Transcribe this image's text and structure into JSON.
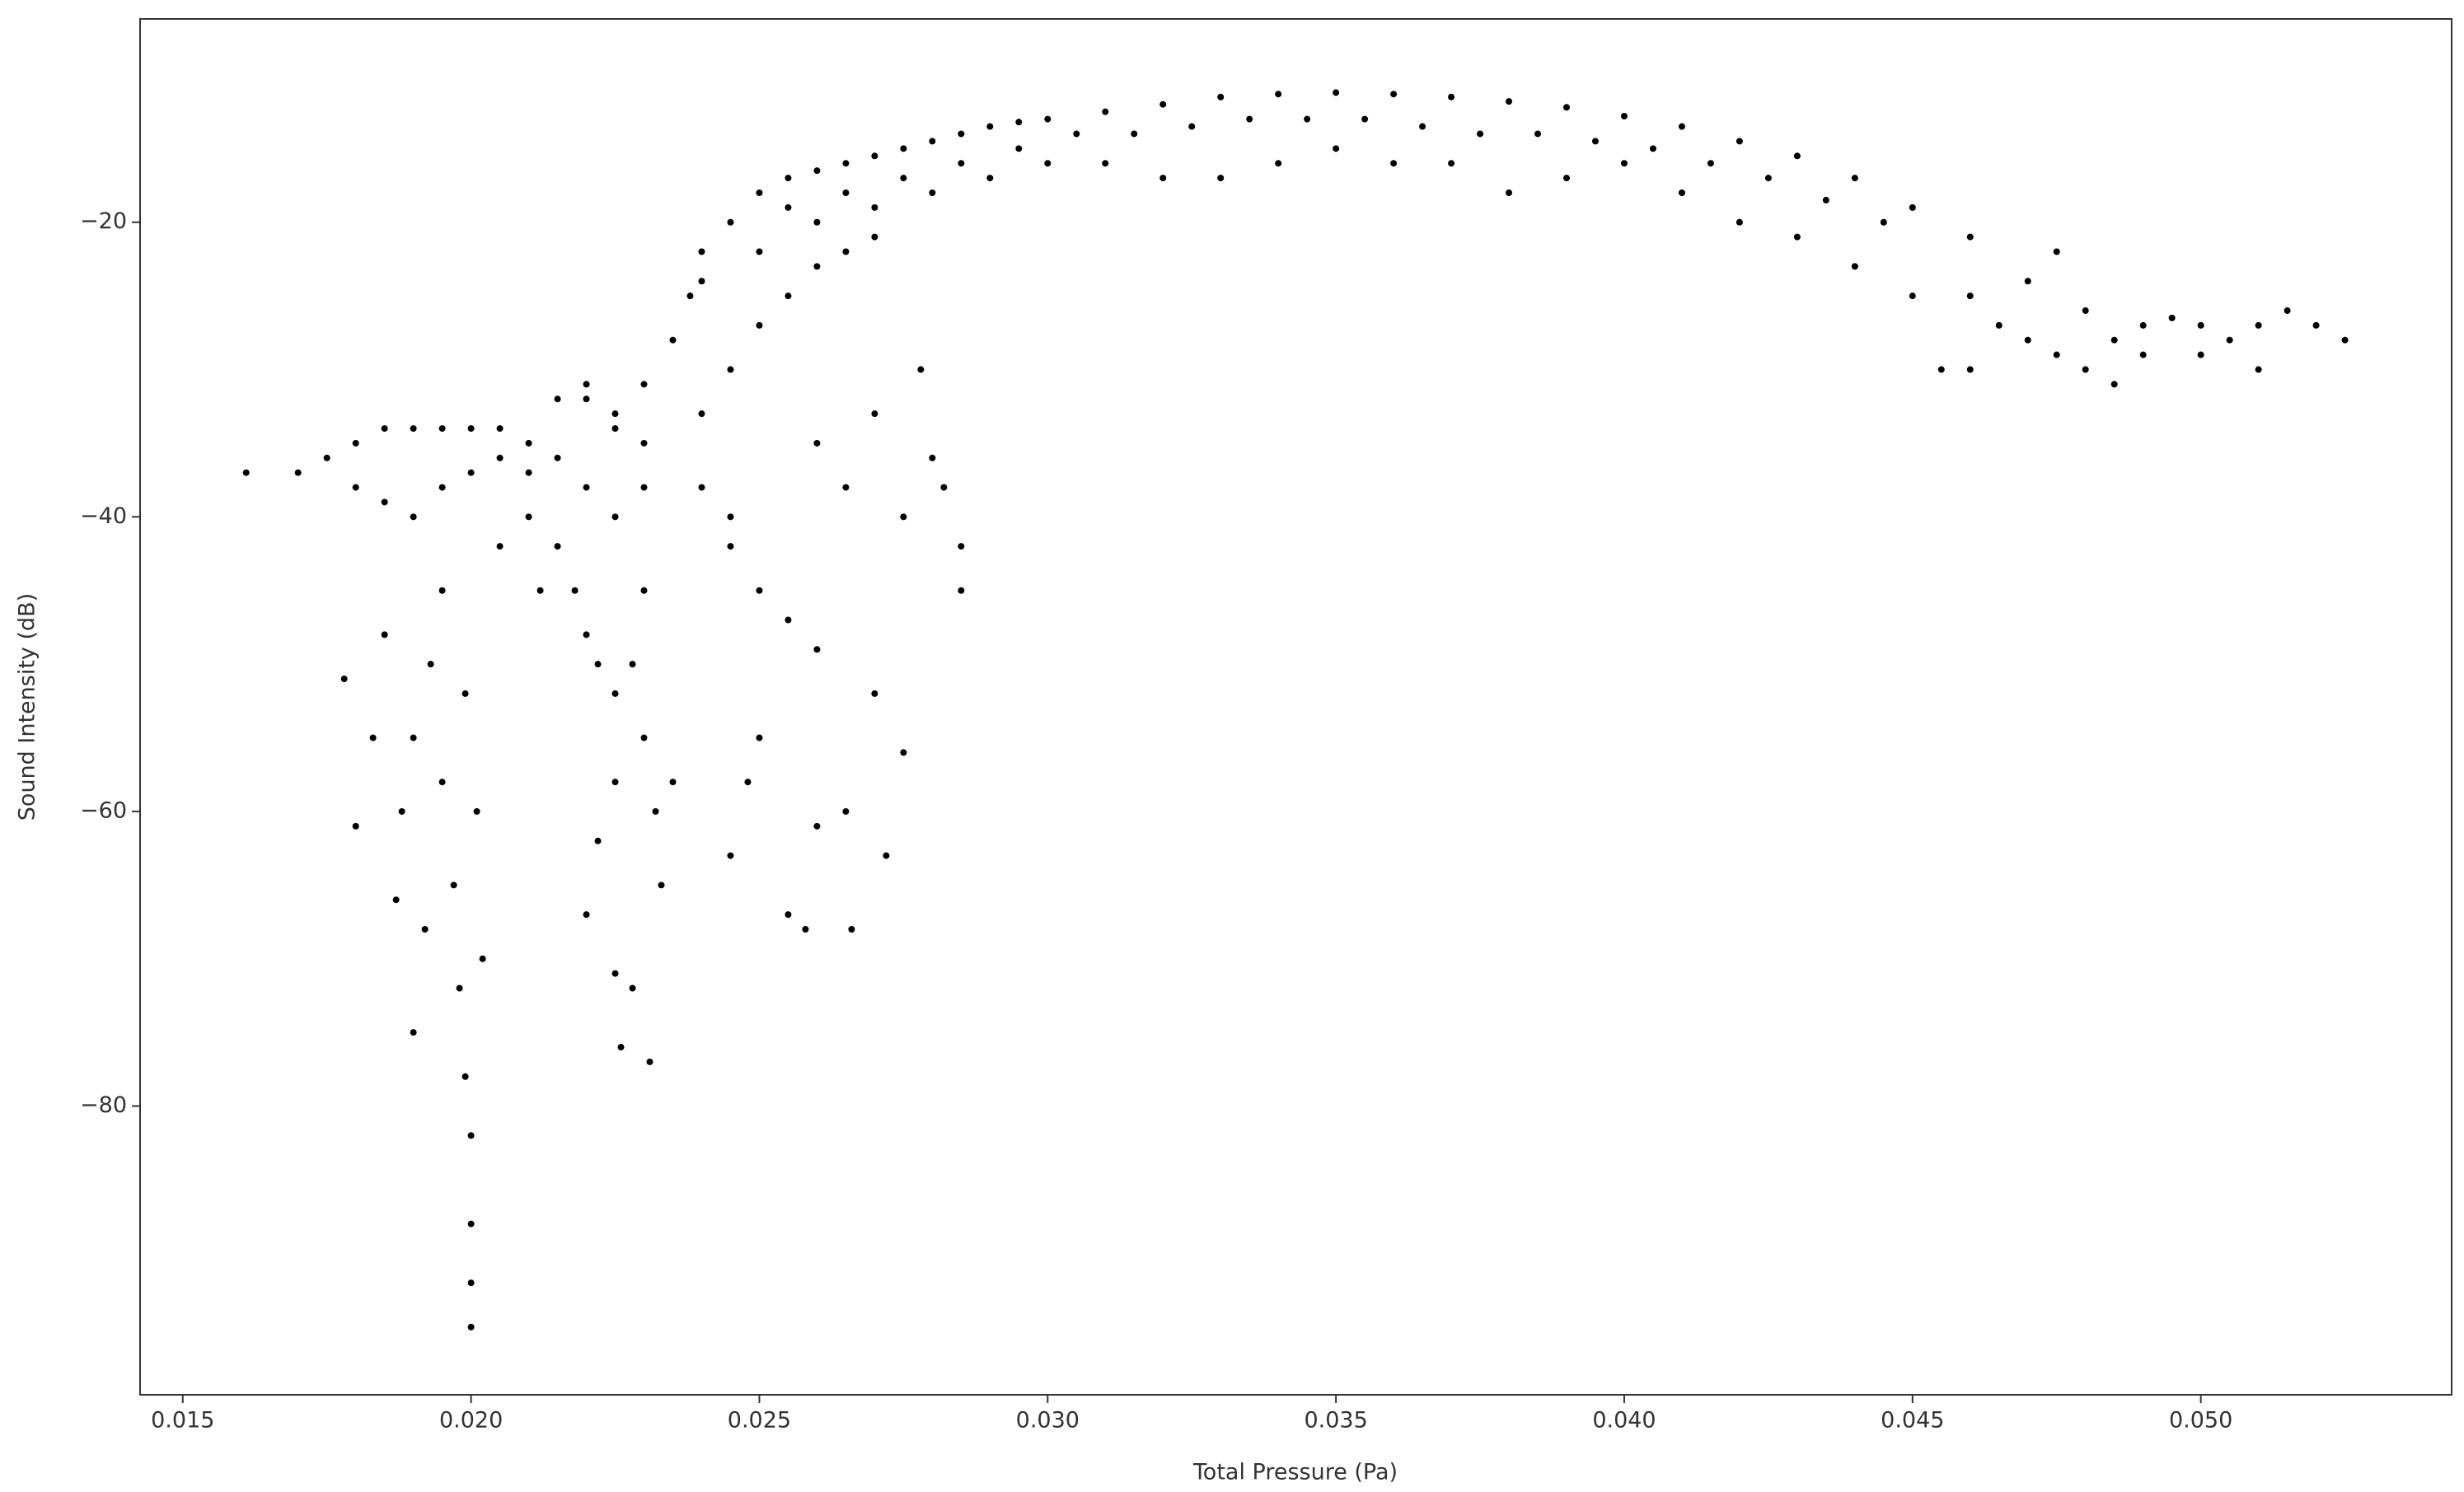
{
  "chart_data": {
    "type": "scatter",
    "x_label": "Total Pressure (Pa)",
    "y_label": "Sound Intensity (dB)",
    "color": "#000000",
    "xlim": [
      0.01426,
      0.05435
    ],
    "ylim": [
      -99.6,
      -6.2
    ],
    "xticks": [
      0.015,
      {
        "value": 0.02,
        "label": "0.020"
      },
      0.025,
      {
        "value": 0.03,
        "label": "0.030"
      },
      0.035,
      {
        "value": 0.04,
        "label": "0.040"
      },
      0.045,
      {
        "value": 0.05,
        "label": "0.050"
      }
    ],
    "yticks": [
      {
        "value": -20,
        "label": "−20"
      },
      {
        "value": -40,
        "label": "−40"
      },
      {
        "value": -60,
        "label": "−60"
      },
      {
        "value": -80,
        "label": "−80"
      }
    ],
    "x": [
      0.024,
      0.0245,
      0.025,
      0.0255,
      0.026,
      0.0265,
      0.027,
      0.0275,
      0.028,
      0.0285,
      0.029,
      0.0295,
      0.03,
      0.031,
      0.032,
      0.033,
      0.034,
      0.035,
      0.036,
      0.037,
      0.038,
      0.039,
      0.04,
      0.041,
      0.042,
      0.043,
      0.044,
      0.045,
      0.046,
      0.025,
      0.026,
      0.027,
      0.028,
      0.029,
      0.03,
      0.031,
      0.032,
      0.033,
      0.034,
      0.035,
      0.036,
      0.037,
      0.038,
      0.039,
      0.04,
      0.041,
      0.042,
      0.043,
      0.044,
      0.045,
      0.0455,
      0.0255,
      0.0265,
      0.0275,
      0.0285,
      0.0295,
      0.0305,
      0.0315,
      0.0325,
      0.0335,
      0.0345,
      0.0355,
      0.0365,
      0.0375,
      0.0385,
      0.0395,
      0.0405,
      0.0415,
      0.0425,
      0.0435,
      0.0445,
      0.046,
      0.0465,
      0.047,
      0.0475,
      0.048,
      0.0485,
      0.049,
      0.0495,
      0.05,
      0.0505,
      0.051,
      0.0515,
      0.052,
      0.0525,
      0.047,
      0.048,
      0.049,
      0.05,
      0.051,
      0.046,
      0.0475,
      0.0485,
      0.0225,
      0.023,
      0.0235,
      0.0238,
      0.024,
      0.022,
      0.023,
      0.024,
      0.0245,
      0.025,
      0.0255,
      0.026,
      0.0265,
      0.027,
      0.024,
      0.0245,
      0.0245,
      0.025,
      0.0255,
      0.026,
      0.026,
      0.0265,
      0.027,
      0.0275,
      0.028,
      0.0285,
      0.0285,
      0.0275,
      0.027,
      0.0265,
      0.026,
      0.0255,
      0.0258,
      0.0266,
      0.0272,
      0.025,
      0.0245,
      0.0248,
      0.0278,
      0.0282,
      0.0161,
      0.017,
      0.0175,
      0.018,
      0.0185,
      0.019,
      0.0195,
      0.02,
      0.0205,
      0.021,
      0.0215,
      0.018,
      0.0185,
      0.019,
      0.0195,
      0.02,
      0.0205,
      0.021,
      0.0215,
      0.022,
      0.0225,
      0.023,
      0.022,
      0.0225,
      0.023,
      0.0195,
      0.0193,
      0.019,
      0.0188,
      0.0195,
      0.0197,
      0.0198,
      0.0199,
      0.02,
      0.02,
      0.02,
      0.02,
      0.0192,
      0.019,
      0.0185,
      0.0183,
      0.018,
      0.0178,
      0.0187,
      0.0202,
      0.0201,
      0.0199,
      0.0215,
      0.0218,
      0.022,
      0.0222,
      0.0225,
      0.023,
      0.0228,
      0.0225,
      0.0222,
      0.022,
      0.0225,
      0.0228,
      0.0226,
      0.0231,
      0.0233,
      0.0235,
      0.0232,
      0.0212,
      0.021,
      0.0205
    ],
    "values": [
      -22,
      -20,
      -18,
      -17,
      -16.5,
      -16,
      -15.5,
      -15,
      -14.5,
      -14,
      -13.5,
      -13.2,
      -13,
      -12.5,
      -12,
      -11.5,
      -11.3,
      -11.2,
      -11.3,
      -11.5,
      -11.8,
      -12.2,
      -12.8,
      -13.5,
      -14.5,
      -15.5,
      -17,
      -19,
      -21,
      -22,
      -20,
      -19,
      -18,
      -17,
      -16,
      -16,
      -17,
      -17,
      -16,
      -15,
      -16,
      -16,
      -18,
      -17,
      -16,
      -18,
      -20,
      -21,
      -23,
      -25,
      -30,
      -19,
      -18,
      -17,
      -16,
      -15,
      -14,
      -14,
      -13.5,
      -13,
      -13,
      -13,
      -13.5,
      -14,
      -14,
      -14.5,
      -15,
      -16,
      -17,
      -18.5,
      -20,
      -25,
      -27,
      -28,
      -29,
      -30,
      -28,
      -27,
      -26.5,
      -27,
      -28,
      -27,
      -26,
      -27,
      -28,
      -24,
      -26,
      -29,
      -29,
      -30,
      -30,
      -22,
      -31,
      -33,
      -31,
      -28,
      -25,
      -24,
      -32,
      -35,
      -33,
      -30,
      -27,
      -25,
      -23,
      -22,
      -21,
      -38,
      -40,
      -42,
      -45,
      -47,
      -49,
      -35,
      -38,
      -33,
      -40,
      -36,
      -42,
      -45,
      -56,
      -52,
      -60,
      -61,
      -67,
      -68,
      -68,
      -63,
      -55,
      -63,
      -58,
      -30,
      -38,
      -37,
      -37,
      -36,
      -35,
      -34,
      -34,
      -34,
      -34,
      -34,
      -35,
      -36,
      -38,
      -39,
      -40,
      -38,
      -37,
      -36,
      -37,
      -32,
      -31,
      -34,
      -38,
      -38,
      -40,
      -45,
      -45,
      -50,
      -55,
      -60,
      -58,
      -65,
      -72,
      -78,
      -82,
      -88,
      -92,
      -95,
      -68,
      -75,
      -48,
      -55,
      -61,
      -51,
      -66,
      -70,
      -60,
      -52,
      -42,
      -45,
      -48,
      -50,
      -52,
      -55,
      -50,
      -58,
      -62,
      -67,
      -71,
      -72,
      -76,
      -77,
      -65,
      -58,
      -60,
      -45,
      -40,
      -42
    ]
  }
}
